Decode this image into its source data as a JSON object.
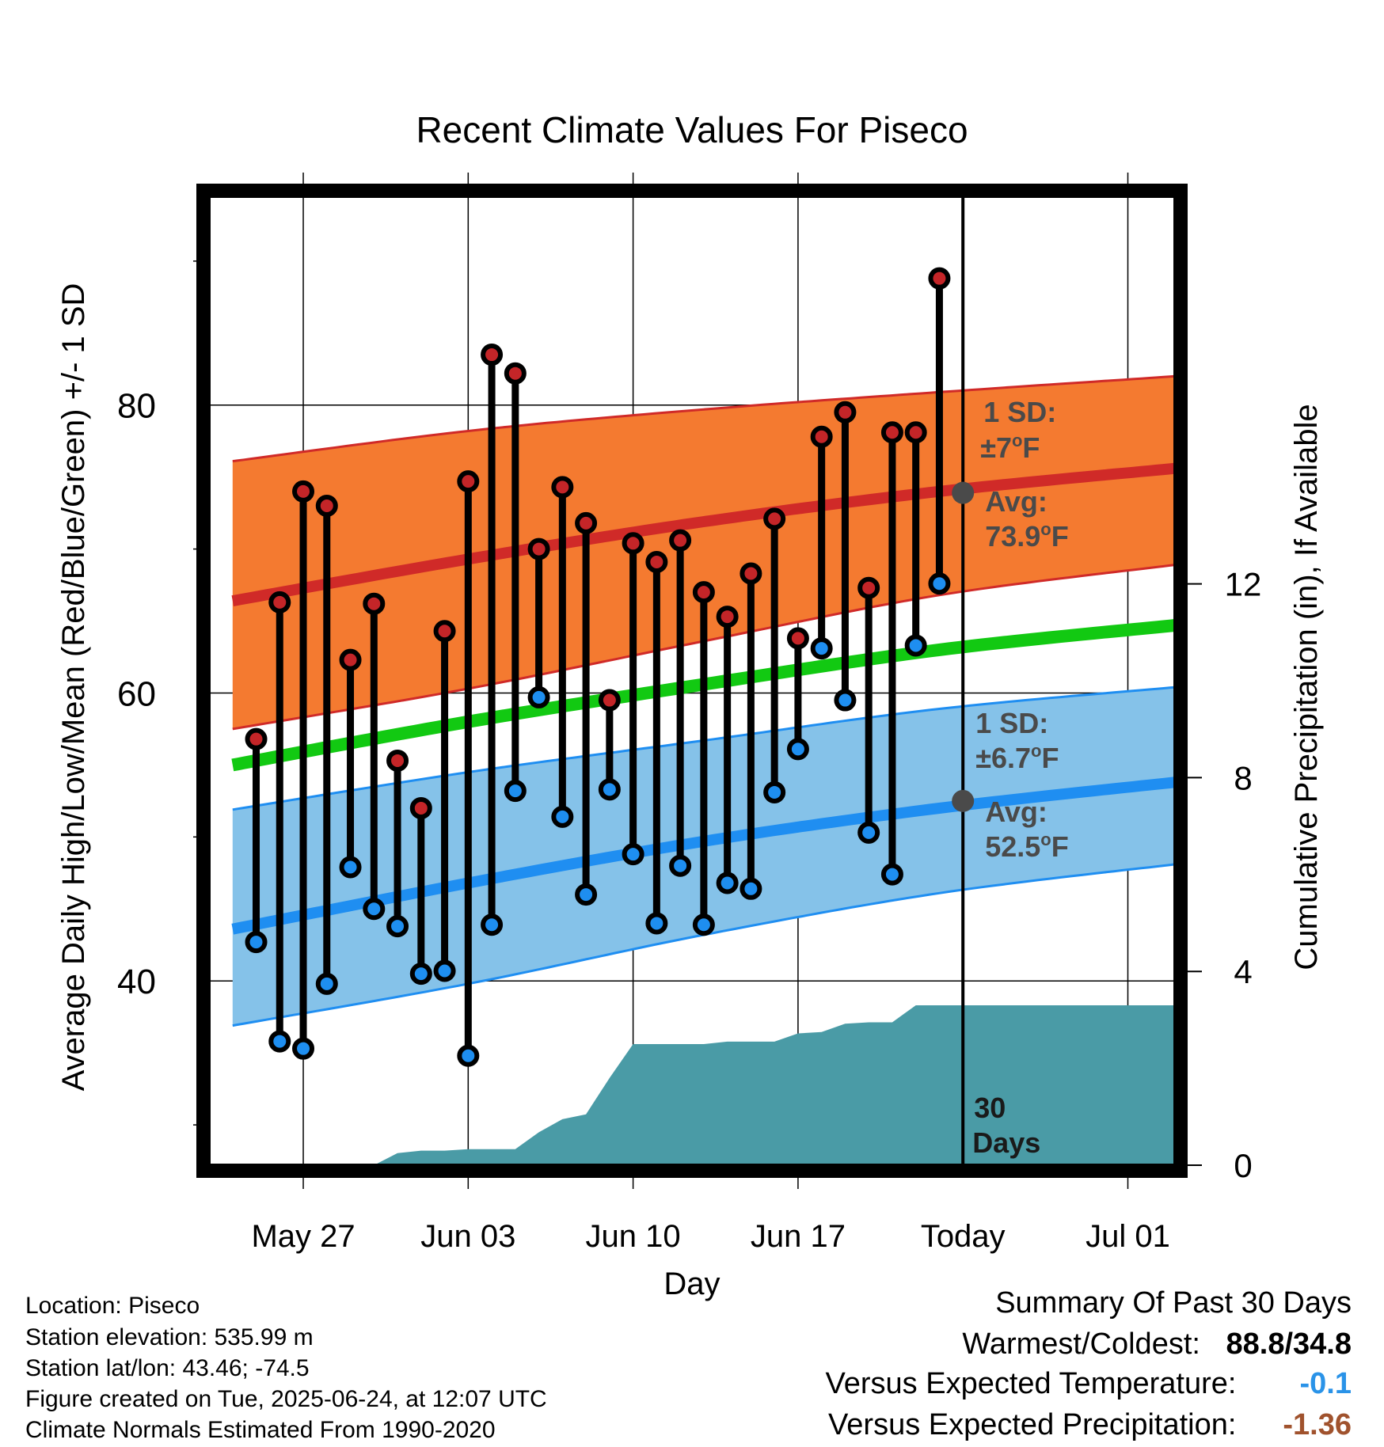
{
  "chart_data": {
    "type": "line",
    "title": "Recent Climate Values For Piseco",
    "xlabel": "Day",
    "ylabel": "Average Daily High/Low/Mean (Red/Blue/Green) +/- 1 SD",
    "y2label": "Cumulative Precipitation (in), If Available",
    "x_tick_labels": [
      "May 27",
      "Jun 03",
      "Jun 10",
      "Jun 17",
      "Today",
      "Jul 01"
    ],
    "y_ticks": [
      40,
      60,
      80
    ],
    "y2_ticks": [
      0,
      4,
      8,
      12
    ],
    "ylim": [
      27.2,
      94.5
    ],
    "y2lim": [
      0,
      20
    ],
    "xlim": [
      "2025-05-23",
      "2025-07-03"
    ],
    "today": "2025-06-24",
    "colors": {
      "high_band": "#f47a30",
      "high_avg": "#d02a28",
      "low_band": "#85c2e9",
      "low_avg": "#1f8ef1",
      "mean": "#12c912",
      "precip": "#4a9ba6",
      "high_point": "#c42528",
      "low_point": "#1e8ef0"
    },
    "normals": {
      "x": [
        "2025-05-24",
        "2025-06-03",
        "2025-06-13",
        "2025-06-23",
        "2025-07-03"
      ],
      "high_avg": [
        66.4,
        69.3,
        71.9,
        74.0,
        75.6
      ],
      "high_upper": [
        76.1,
        78.2,
        79.7,
        80.9,
        82.0
      ],
      "high_lower": [
        57.5,
        60.3,
        63.6,
        66.8,
        68.9
      ],
      "low_avg": [
        43.6,
        46.8,
        49.7,
        52.0,
        53.8
      ],
      "low_upper": [
        51.9,
        54.5,
        56.7,
        58.9,
        60.4
      ],
      "low_lower": [
        36.9,
        39.8,
        43.2,
        46.1,
        48.1
      ],
      "mean_avg": [
        55.0,
        58.0,
        60.6,
        63.0,
        64.7
      ]
    },
    "daily": {
      "x": [
        "2025-05-25",
        "2025-05-26",
        "2025-05-27",
        "2025-05-28",
        "2025-05-29",
        "2025-05-30",
        "2025-05-31",
        "2025-06-01",
        "2025-06-02",
        "2025-06-03",
        "2025-06-04",
        "2025-06-05",
        "2025-06-06",
        "2025-06-07",
        "2025-06-08",
        "2025-06-09",
        "2025-06-10",
        "2025-06-11",
        "2025-06-12",
        "2025-06-13",
        "2025-06-14",
        "2025-06-15",
        "2025-06-16",
        "2025-06-17",
        "2025-06-18",
        "2025-06-19",
        "2025-06-20",
        "2025-06-21",
        "2025-06-22",
        "2025-06-23"
      ],
      "high": [
        56.8,
        66.3,
        74.0,
        73.0,
        62.3,
        66.2,
        55.3,
        52.0,
        64.3,
        74.7,
        83.5,
        82.2,
        70.0,
        74.3,
        71.8,
        59.5,
        70.4,
        69.1,
        70.6,
        67.0,
        65.3,
        68.3,
        72.1,
        63.8,
        77.8,
        79.5,
        67.3,
        78.1,
        78.1,
        88.8
      ],
      "low": [
        42.7,
        35.8,
        35.3,
        39.8,
        47.9,
        45.0,
        43.8,
        40.5,
        40.7,
        34.8,
        43.9,
        53.2,
        59.7,
        51.4,
        46.0,
        53.3,
        48.8,
        44.0,
        48.0,
        43.9,
        46.8,
        46.4,
        53.1,
        56.1,
        63.1,
        59.5,
        50.3,
        47.4,
        63.3,
        67.6
      ]
    },
    "precip": {
      "x": [
        "2025-05-26",
        "2025-05-27",
        "2025-05-28",
        "2025-05-29",
        "2025-05-30",
        "2025-05-31",
        "2025-06-01",
        "2025-06-02",
        "2025-06-03",
        "2025-06-04",
        "2025-06-05",
        "2025-06-06",
        "2025-06-07",
        "2025-06-08",
        "2025-06-09",
        "2025-06-10",
        "2025-06-11",
        "2025-06-12",
        "2025-06-13",
        "2025-06-14",
        "2025-06-15",
        "2025-06-16",
        "2025-06-17",
        "2025-06-18",
        "2025-06-19",
        "2025-06-20",
        "2025-06-21",
        "2025-06-22",
        "2025-06-23",
        "2025-07-03"
      ],
      "values": [
        0,
        0,
        0,
        0,
        0,
        0.25,
        0.3,
        0.3,
        0.33,
        0.33,
        0.33,
        0.68,
        0.95,
        1.05,
        1.8,
        2.5,
        2.5,
        2.5,
        2.5,
        2.55,
        2.55,
        2.55,
        2.72,
        2.75,
        2.92,
        2.95,
        2.95,
        3.3,
        3.3,
        3.3
      ]
    },
    "annotations": {
      "high_sd": {
        "label": "1 SD:",
        "value": "±7",
        "unit": "F"
      },
      "high_avg": {
        "label": "Avg:",
        "value": "73.9",
        "unit": "F",
        "y": 73.9
      },
      "low_sd": {
        "label": "1 SD:",
        "value": "±6.7",
        "unit": "F"
      },
      "low_avg": {
        "label": "Avg:",
        "value": "52.5",
        "unit": "F",
        "y": 52.5
      },
      "degree_symbol": "o",
      "days": [
        "30",
        "Days"
      ]
    }
  },
  "footer": {
    "location": "Location: Piseco",
    "elevation": "Station elevation: 535.99 m",
    "latlon": "Station lat/lon: 43.46; -74.5",
    "created": "Figure created on Tue, 2025-06-24, at 12:07 UTC",
    "normals": "Climate Normals Estimated From 1990-2020"
  },
  "summary": {
    "title": "Summary Of Past 30 Days",
    "warm_label": "Warmest/Coldest:",
    "warm_value": "88.8/34.8",
    "temp_label": "Versus Expected Temperature:",
    "temp_value": "-0.1",
    "temp_color": "#2a93e8",
    "precip_label": "Versus Expected Precipitation:",
    "precip_value": "-1.36",
    "precip_color": "#a0522d"
  }
}
